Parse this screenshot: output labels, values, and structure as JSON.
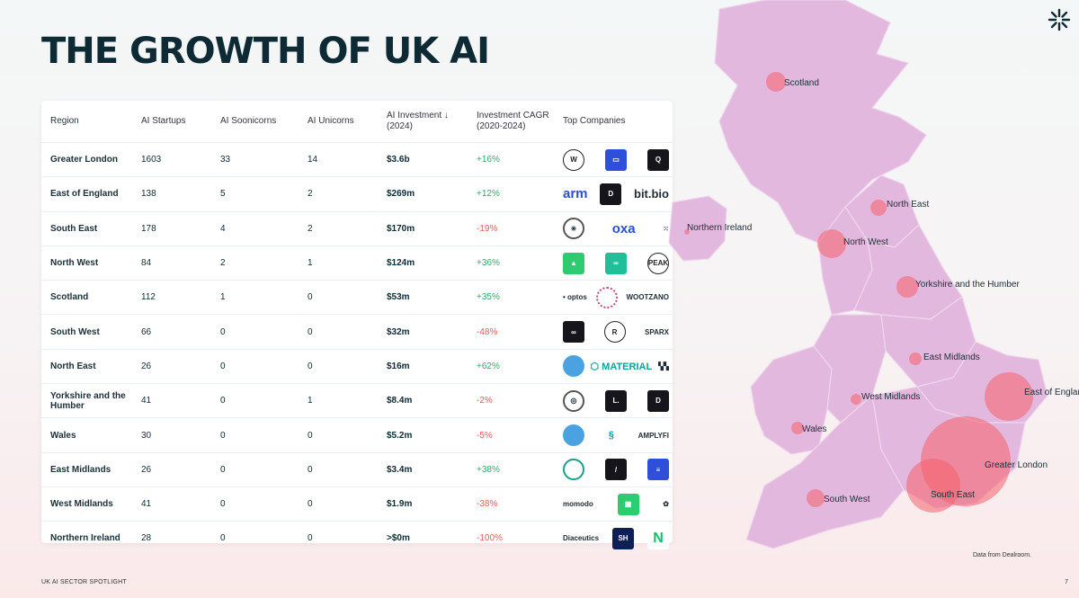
{
  "title": "THE GROWTH OF UK AI",
  "table": {
    "headers": {
      "region": "Region",
      "startups": "AI Startups",
      "soonicorns": "AI Soonicorns",
      "unicorns": "AI Unicorns",
      "investment": "AI Investment ↓ (2024)",
      "cagr": "Investment CAGR (2020-2024)",
      "top": "Top Companies"
    },
    "rows": [
      {
        "region": "Greater London",
        "startups": "1603",
        "soonicorns": "33",
        "unicorns": "14",
        "investment": "$3.6b",
        "cagr": "+16%",
        "trend": "pos",
        "logos": [
          {
            "style": "outline",
            "label": "W"
          },
          {
            "style": "blue",
            "label": "▭"
          },
          {
            "style": "dark",
            "label": "Q"
          }
        ]
      },
      {
        "region": "East of England",
        "startups": "138",
        "soonicorns": "5",
        "unicorns": "2",
        "investment": "$269m",
        "cagr": "+12%",
        "trend": "pos",
        "logos": [
          {
            "style": "textblue",
            "label": "arm"
          },
          {
            "style": "dark",
            "label": "D"
          },
          {
            "style": "text big",
            "label": "bit.bio"
          }
        ]
      },
      {
        "region": "South East",
        "startups": "178",
        "soonicorns": "4",
        "unicorns": "2",
        "investment": "$170m",
        "cagr": "-19%",
        "trend": "neg",
        "logos": [
          {
            "style": "ringgrey",
            "label": "✳"
          },
          {
            "style": "textblue",
            "label": "oxa"
          },
          {
            "style": "text",
            "label": "⁙"
          }
        ]
      },
      {
        "region": "North West",
        "startups": "84",
        "soonicorns": "2",
        "unicorns": "1",
        "investment": "$124m",
        "cagr": "+36%",
        "trend": "pos",
        "logos": [
          {
            "style": "green",
            "label": "▲"
          },
          {
            "style": "teal",
            "label": "∞"
          },
          {
            "style": "outline",
            "label": "PEAK"
          }
        ]
      },
      {
        "region": "Scotland",
        "startups": "112",
        "soonicorns": "1",
        "unicorns": "0",
        "investment": "$53m",
        "cagr": "+35%",
        "trend": "pos",
        "logos": [
          {
            "style": "text",
            "label": "• optos"
          },
          {
            "style": "ringpink",
            "label": ""
          },
          {
            "style": "text",
            "label": "WOOTZANO"
          }
        ]
      },
      {
        "region": "South West",
        "startups": "66",
        "soonicorns": "0",
        "unicorns": "0",
        "investment": "$32m",
        "cagr": "-48%",
        "trend": "neg",
        "logos": [
          {
            "style": "dark",
            "label": "∞"
          },
          {
            "style": "outline",
            "label": "R"
          },
          {
            "style": "text",
            "label": "SPARX"
          }
        ]
      },
      {
        "region": "North East",
        "startups": "26",
        "soonicorns": "0",
        "unicorns": "0",
        "investment": "$16m",
        "cagr": "+62%",
        "trend": "pos",
        "logos": [
          {
            "style": "ringblue",
            "label": ""
          },
          {
            "style": "textteal",
            "label": "⬡ MATERIAL"
          },
          {
            "style": "text",
            "label": "▚▚"
          }
        ]
      },
      {
        "region": "Yorkshire and the Humber",
        "startups": "41",
        "soonicorns": "0",
        "unicorns": "1",
        "investment": "$8.4m",
        "cagr": "-2%",
        "trend": "neg",
        "logos": [
          {
            "style": "ringgrey",
            "label": "◎"
          },
          {
            "style": "dark",
            "label": "L."
          },
          {
            "style": "dark",
            "label": "D"
          }
        ]
      },
      {
        "region": "Wales",
        "startups": "30",
        "soonicorns": "0",
        "unicorns": "0",
        "investment": "$5.2m",
        "cagr": "-5%",
        "trend": "neg",
        "logos": [
          {
            "style": "ringblue",
            "label": ""
          },
          {
            "style": "textteal",
            "label": "§"
          },
          {
            "style": "text",
            "label": "AMPLYFI"
          }
        ]
      },
      {
        "region": "East Midlands",
        "startups": "26",
        "soonicorns": "0",
        "unicorns": "0",
        "investment": "$3.4m",
        "cagr": "+38%",
        "trend": "pos",
        "logos": [
          {
            "style": "swirl",
            "label": ""
          },
          {
            "style": "dark",
            "label": "/"
          },
          {
            "style": "blue",
            "label": "≡"
          }
        ]
      },
      {
        "region": "West Midlands",
        "startups": "41",
        "soonicorns": "0",
        "unicorns": "0",
        "investment": "$1.9m",
        "cagr": "-38%",
        "trend": "neg",
        "logos": [
          {
            "style": "text",
            "label": "momodo"
          },
          {
            "style": "green",
            "label": "▦"
          },
          {
            "style": "text",
            "label": "✿"
          }
        ]
      },
      {
        "region": "Northern Ireland",
        "startups": "28",
        "soonicorns": "0",
        "unicorns": "0",
        "investment": ">$0m",
        "cagr": "-100%",
        "trend": "neg",
        "logos": [
          {
            "style": "text",
            "label": "Diaceutics"
          },
          {
            "style": "navy",
            "label": "SH"
          },
          {
            "style": "brightgreen",
            "label": "N"
          }
        ]
      }
    ]
  },
  "map": {
    "labels": {
      "scotland": "Scotland",
      "northern_ireland": "Northern Ireland",
      "north_east": "North East",
      "north_west": "North West",
      "yorkshire": "Yorkshire and the Humber",
      "east_midlands": "East Midlands",
      "west_midlands": "West Midlands",
      "wales": "Wales",
      "east_of_england": "East of England",
      "greater_london": "Greater London",
      "south_east": "South East",
      "south_west": "South West"
    },
    "bubble_color": "#f5606a",
    "land_color": "#e3b7de"
  },
  "source_note": "Data from Dealroom.",
  "footer": {
    "left": "UK AI SECTOR SPOTLIGHT",
    "page_number": "7"
  },
  "colors": {
    "positive": "#3aa56a",
    "negative": "#e0605a",
    "title": "#0e2a35"
  }
}
